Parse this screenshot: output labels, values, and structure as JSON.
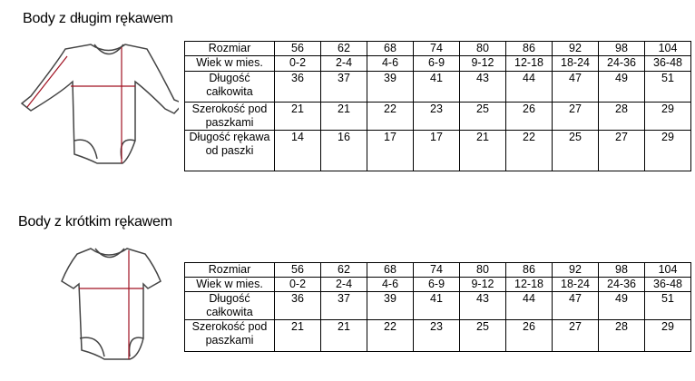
{
  "sections": [
    {
      "title": "Body z długim rękawem",
      "illustration": "long-sleeve-bodysuit-icon",
      "rows": [
        {
          "label": "Rozmiar",
          "values": [
            "56",
            "62",
            "68",
            "74",
            "80",
            "86",
            "92",
            "98",
            "104"
          ]
        },
        {
          "label": "Wiek w mies.",
          "values": [
            "0-2",
            "2-4",
            "4-6",
            "6-9",
            "9-12",
            "12-18",
            "18-24",
            "24-36",
            "36-48"
          ]
        },
        {
          "label": "Długość całkowita",
          "values": [
            "36",
            "37",
            "39",
            "41",
            "43",
            "44",
            "47",
            "49",
            "51"
          ]
        },
        {
          "label": "Szerokość pod paszkami",
          "values": [
            "21",
            "21",
            "22",
            "23",
            "25",
            "26",
            "27",
            "28",
            "29"
          ]
        },
        {
          "label": "Długość rękawa od paszki",
          "values": [
            "14",
            "16",
            "17",
            "17",
            "21",
            "22",
            "25",
            "27",
            "29"
          ]
        }
      ]
    },
    {
      "title": "Body z krótkim rękawem",
      "illustration": "short-sleeve-bodysuit-icon",
      "rows": [
        {
          "label": "Rozmiar",
          "values": [
            "56",
            "62",
            "68",
            "74",
            "80",
            "86",
            "92",
            "98",
            "104"
          ]
        },
        {
          "label": "Wiek w mies.",
          "values": [
            "0-2",
            "2-4",
            "4-6",
            "6-9",
            "9-12",
            "12-18",
            "18-24",
            "24-36",
            "36-48"
          ]
        },
        {
          "label": "Długość całkowita",
          "values": [
            "36",
            "37",
            "39",
            "41",
            "43",
            "44",
            "47",
            "49",
            "51"
          ]
        },
        {
          "label": "Szerokość pod paszkami",
          "values": [
            "21",
            "21",
            "22",
            "23",
            "25",
            "26",
            "27",
            "28",
            "29"
          ]
        }
      ]
    }
  ],
  "colors": {
    "measure_line": "#a01020",
    "outline": "#444444"
  }
}
